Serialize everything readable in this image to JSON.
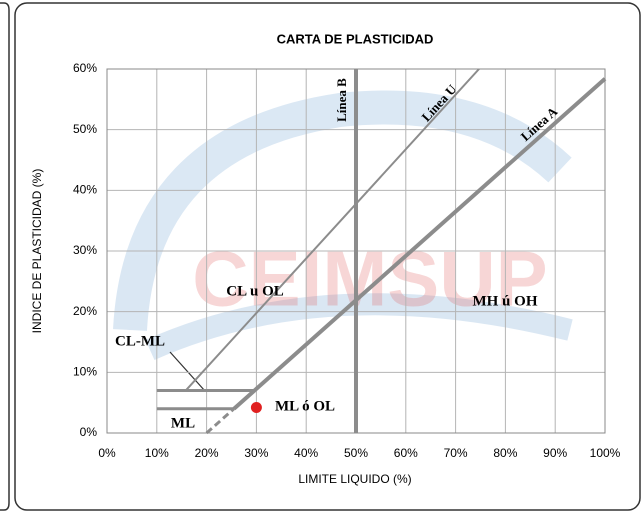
{
  "chart_data": {
    "type": "line",
    "title": "CARTA DE PLASTICIDAD",
    "x_label": "LIMITE LIQUIDO (%)",
    "y_label": "INDICE DE PLASTICIDAD (%)",
    "watermark": "CEIMSUP",
    "xlim": [
      0,
      100
    ],
    "ylim": [
      0,
      60
    ],
    "xticks": [
      {
        "value": 0,
        "label": "0%"
      },
      {
        "value": 10,
        "label": "10%"
      },
      {
        "value": 20,
        "label": "20%"
      },
      {
        "value": 30,
        "label": "30%"
      },
      {
        "value": 40,
        "label": "40%"
      },
      {
        "value": 50,
        "label": "50%"
      },
      {
        "value": 60,
        "label": "60%"
      },
      {
        "value": 70,
        "label": "70%"
      },
      {
        "value": 80,
        "label": "80%"
      },
      {
        "value": 90,
        "label": "90%"
      },
      {
        "value": 100,
        "label": "100%"
      }
    ],
    "yticks": [
      {
        "value": 0,
        "label": "0%"
      },
      {
        "value": 10,
        "label": "10%"
      },
      {
        "value": 20,
        "label": "20%"
      },
      {
        "value": 30,
        "label": "30%"
      },
      {
        "value": 40,
        "label": "40%"
      },
      {
        "value": 50,
        "label": "50%"
      },
      {
        "value": 60,
        "label": "60%"
      }
    ],
    "grid": true,
    "series": [
      {
        "name": "Línea A",
        "color": "#8c8c8c",
        "width": 4,
        "x": [
          25.5,
          100
        ],
        "values": [
          4,
          58.4
        ]
      },
      {
        "color": "#8c8c8c",
        "width": 3,
        "dashed": true,
        "x": [
          20,
          25.5
        ],
        "values": [
          0,
          4
        ]
      },
      {
        "name": "Línea U",
        "color": "#8c8c8c",
        "width": 2,
        "x": [
          15.8,
          74.7
        ],
        "values": [
          7,
          60
        ]
      },
      {
        "name": "Línea B",
        "color": "#8c8c8c",
        "width": 4,
        "x": [
          50,
          50
        ],
        "values": [
          0,
          60
        ]
      },
      {
        "color": "#8c8c8c",
        "width": 3,
        "x": [
          10,
          29.6
        ],
        "values": [
          7,
          7
        ]
      },
      {
        "color": "#8c8c8c",
        "width": 3,
        "x": [
          10,
          25.5
        ],
        "values": [
          4,
          4
        ]
      }
    ],
    "points": {
      "color": "#e02020",
      "x": [
        30
      ],
      "values": [
        4.2
      ]
    },
    "annotations": [
      "CL u OL",
      "MH ú OH",
      "CL-ML",
      "ML",
      "ML ó OL"
    ]
  }
}
